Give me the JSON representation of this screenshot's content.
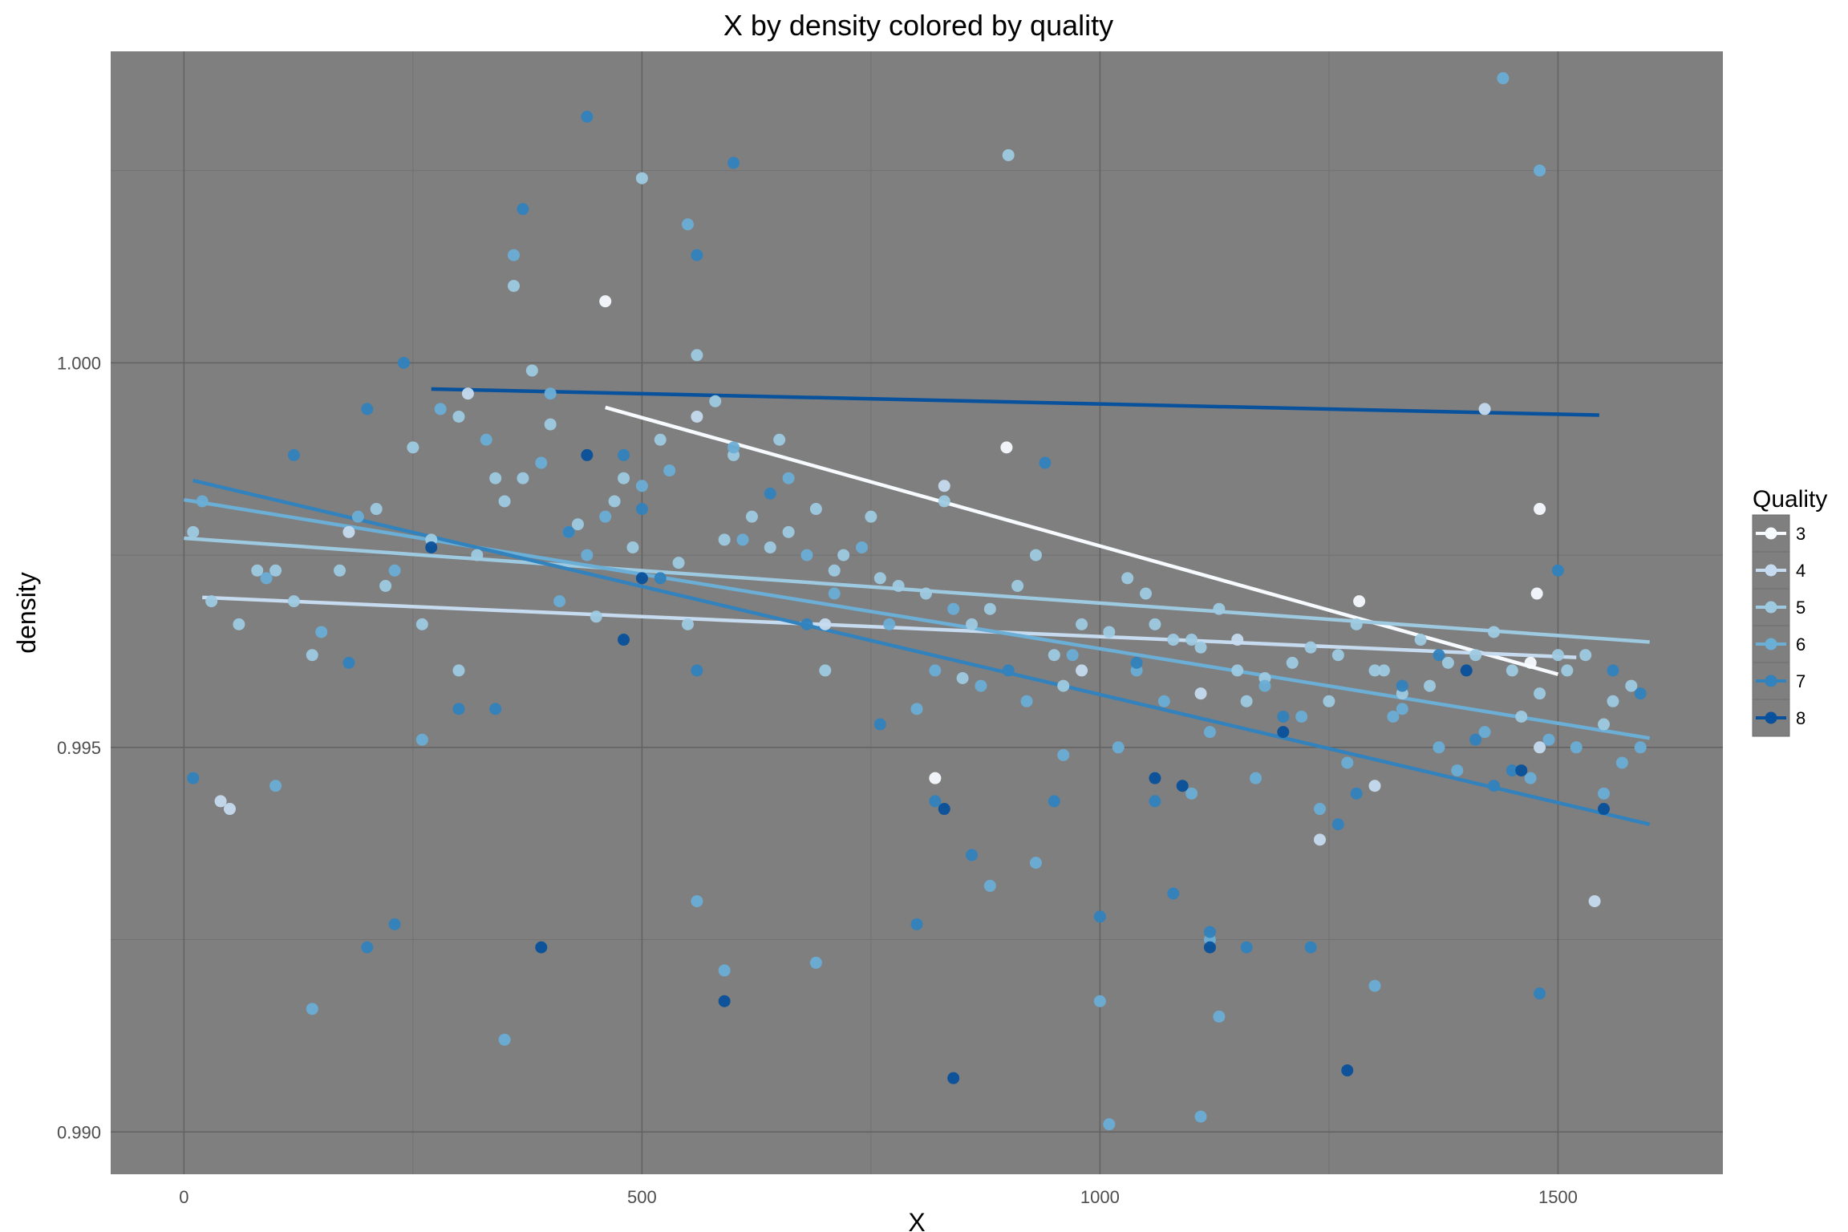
{
  "chart_data": {
    "type": "scatter",
    "title": "X by density colored by quality",
    "xlabel": "X",
    "ylabel": "density",
    "xlim": [
      -80,
      1680
    ],
    "ylim": [
      0.98945,
      1.00405
    ],
    "x_ticks": [
      0,
      500,
      1000,
      1500
    ],
    "x_tick_labels": [
      "0",
      "500",
      "1000",
      "1500"
    ],
    "y_ticks": [
      0.99,
      0.995,
      1.0
    ],
    "y_tick_labels": [
      "0.990",
      "0.995",
      "1.000"
    ],
    "grid": true,
    "panel_background": "#7f7f7f",
    "legend": {
      "title": "Quality",
      "position": "right"
    },
    "series": [
      {
        "name": "3",
        "color": "#f7fbff",
        "points": [
          [
            460,
            1.0008
          ],
          [
            898,
            0.9989
          ],
          [
            1283,
            0.9969
          ],
          [
            1470,
            0.9961
          ],
          [
            1477,
            0.997
          ],
          [
            1480,
            0.9981
          ],
          [
            820,
            0.9946
          ]
        ],
        "trend": [
          [
            460,
            0.99942
          ],
          [
            1500,
            0.99595
          ]
        ]
      },
      {
        "name": "4",
        "color": "#c6dbef",
        "points": [
          [
            40,
            0.9943
          ],
          [
            50,
            0.9942
          ],
          [
            310,
            0.9996
          ],
          [
            830,
            0.9984
          ],
          [
            1110,
            0.9957
          ],
          [
            1240,
            0.9938
          ],
          [
            1300,
            0.9945
          ],
          [
            1420,
            0.9994
          ],
          [
            1480,
            0.995
          ],
          [
            1540,
            0.993
          ],
          [
            180,
            0.9978
          ],
          [
            560,
            0.9993
          ],
          [
            700,
            0.9966
          ],
          [
            980,
            0.996
          ],
          [
            1150,
            0.9964
          ]
        ],
        "trend": [
          [
            20,
            0.99695
          ],
          [
            1520,
            0.99617
          ]
        ]
      },
      {
        "name": "5",
        "color": "#9ecae1",
        "points": [
          [
            10,
            0.9978
          ],
          [
            60,
            0.9966
          ],
          [
            140,
            0.9962
          ],
          [
            210,
            0.9981
          ],
          [
            260,
            0.9966
          ],
          [
            300,
            0.9993
          ],
          [
            340,
            0.9985
          ],
          [
            380,
            0.9999
          ],
          [
            420,
            0.9978
          ],
          [
            470,
            0.9982
          ],
          [
            520,
            0.999
          ],
          [
            560,
            1.0001
          ],
          [
            600,
            0.9988
          ],
          [
            640,
            0.9976
          ],
          [
            690,
            0.9981
          ],
          [
            720,
            0.9975
          ],
          [
            780,
            0.9971
          ],
          [
            830,
            0.9982
          ],
          [
            880,
            0.9968
          ],
          [
            930,
            0.9975
          ],
          [
            980,
            0.9966
          ],
          [
            1030,
            0.9972
          ],
          [
            1080,
            0.9964
          ],
          [
            1130,
            0.9968
          ],
          [
            1180,
            0.9959
          ],
          [
            1230,
            0.9963
          ],
          [
            1280,
            0.9966
          ],
          [
            1330,
            0.9957
          ],
          [
            1380,
            0.9961
          ],
          [
            1430,
            0.9965
          ],
          [
            1480,
            0.9957
          ],
          [
            1530,
            0.9962
          ],
          [
            1580,
            0.9958
          ],
          [
            250,
            0.9989
          ],
          [
            450,
            0.9967
          ],
          [
            650,
            0.999
          ],
          [
            850,
            0.9959
          ],
          [
            1050,
            0.997
          ],
          [
            1250,
            0.9956
          ],
          [
            1450,
            0.996
          ],
          [
            350,
            0.9982
          ],
          [
            550,
            0.9966
          ],
          [
            750,
            0.998
          ],
          [
            950,
            0.9962
          ],
          [
            1150,
            0.996
          ],
          [
            1350,
            0.9964
          ],
          [
            1550,
            0.9953
          ],
          [
            100,
            0.9973
          ],
          [
            300,
            0.996
          ],
          [
            500,
            1.0024
          ],
          [
            700,
            0.996
          ],
          [
            900,
            1.0027
          ],
          [
            1100,
            0.9964
          ],
          [
            1300,
            0.996
          ],
          [
            1500,
            0.9962
          ],
          [
            360,
            1.001
          ],
          [
            400,
            0.9992
          ],
          [
            480,
            0.9985
          ],
          [
            580,
            0.9995
          ],
          [
            620,
            0.998
          ],
          [
            760,
            0.9972
          ],
          [
            860,
            0.9966
          ],
          [
            960,
            0.9958
          ],
          [
            1060,
            0.9966
          ],
          [
            1160,
            0.9956
          ],
          [
            1260,
            0.9962
          ],
          [
            1360,
            0.9958
          ],
          [
            1460,
            0.9954
          ],
          [
            1560,
            0.9956
          ],
          [
            30,
            0.9969
          ],
          [
            80,
            0.9973
          ],
          [
            120,
            0.9969
          ],
          [
            170,
            0.9973
          ],
          [
            220,
            0.9971
          ],
          [
            270,
            0.9977
          ],
          [
            320,
            0.9975
          ],
          [
            370,
            0.9985
          ],
          [
            430,
            0.9979
          ],
          [
            490,
            0.9976
          ],
          [
            540,
            0.9974
          ],
          [
            590,
            0.9977
          ],
          [
            660,
            0.9978
          ],
          [
            710,
            0.9973
          ],
          [
            810,
            0.997
          ],
          [
            910,
            0.9971
          ],
          [
            1010,
            0.9965
          ],
          [
            1110,
            0.9963
          ],
          [
            1210,
            0.9961
          ],
          [
            1310,
            0.996
          ],
          [
            1410,
            0.9962
          ],
          [
            1510,
            0.996
          ]
        ],
        "trend": [
          [
            0,
            0.99772
          ],
          [
            1600,
            0.99637
          ]
        ]
      },
      {
        "name": "6",
        "color": "#6baed6",
        "points": [
          [
            20,
            0.9982
          ],
          [
            90,
            0.9972
          ],
          [
            150,
            0.9965
          ],
          [
            230,
            0.9973
          ],
          [
            280,
            0.9994
          ],
          [
            330,
            0.999
          ],
          [
            390,
            0.9987
          ],
          [
            440,
            0.9975
          ],
          [
            500,
            0.9984
          ],
          [
            550,
            1.0018
          ],
          [
            610,
            0.9977
          ],
          [
            660,
            0.9985
          ],
          [
            710,
            0.997
          ],
          [
            770,
            0.9966
          ],
          [
            820,
            0.996
          ],
          [
            870,
            0.9958
          ],
          [
            920,
            0.9956
          ],
          [
            970,
            0.9962
          ],
          [
            1020,
            0.995
          ],
          [
            1070,
            0.9956
          ],
          [
            1120,
            0.9952
          ],
          [
            1170,
            0.9946
          ],
          [
            1220,
            0.9954
          ],
          [
            1270,
            0.9948
          ],
          [
            1320,
            0.9954
          ],
          [
            1370,
            0.995
          ],
          [
            1420,
            0.9952
          ],
          [
            1470,
            0.9946
          ],
          [
            1520,
            0.995
          ],
          [
            1570,
            0.9948
          ],
          [
            190,
            0.998
          ],
          [
            360,
            1.0014
          ],
          [
            410,
            0.9969
          ],
          [
            530,
            0.9986
          ],
          [
            680,
            0.9975
          ],
          [
            800,
            0.9955
          ],
          [
            960,
            0.9949
          ],
          [
            1100,
            0.9944
          ],
          [
            1240,
            0.9942
          ],
          [
            1390,
            0.9947
          ],
          [
            1550,
            0.9944
          ],
          [
            100,
            0.9945
          ],
          [
            260,
            0.9951
          ],
          [
            560,
            0.993
          ],
          [
            590,
            0.9921
          ],
          [
            690,
            0.9922
          ],
          [
            930,
            0.9935
          ],
          [
            1000,
            0.9917
          ],
          [
            1120,
            0.9925
          ],
          [
            1300,
            0.9919
          ],
          [
            1440,
            1.0037
          ],
          [
            1480,
            1.0025
          ],
          [
            140,
            0.9916
          ],
          [
            350,
            0.9912
          ],
          [
            1010,
            0.9901
          ],
          [
            1110,
            0.9902
          ],
          [
            1130,
            0.9915
          ],
          [
            880,
            0.9932
          ],
          [
            400,
            0.9996
          ],
          [
            460,
            0.998
          ],
          [
            600,
            0.9989
          ],
          [
            740,
            0.9976
          ],
          [
            840,
            0.9968
          ],
          [
            1040,
            0.996
          ],
          [
            1180,
            0.9958
          ],
          [
            1330,
            0.9955
          ],
          [
            1490,
            0.9951
          ],
          [
            1590,
            0.995
          ]
        ],
        "trend": [
          [
            0,
            0.99822
          ],
          [
            1600,
            0.99512
          ]
        ]
      },
      {
        "name": "7",
        "color": "#3182bd",
        "points": [
          [
            10,
            0.9946
          ],
          [
            120,
            0.9988
          ],
          [
            180,
            0.9961
          ],
          [
            200,
            0.9924
          ],
          [
            230,
            0.9927
          ],
          [
            240,
            1.0
          ],
          [
            340,
            0.9955
          ],
          [
            370,
            1.002
          ],
          [
            440,
            1.0032
          ],
          [
            480,
            0.9988
          ],
          [
            500,
            0.9981
          ],
          [
            560,
            0.996
          ],
          [
            640,
            0.9983
          ],
          [
            760,
            0.9953
          ],
          [
            800,
            0.9927
          ],
          [
            820,
            0.9943
          ],
          [
            860,
            0.9936
          ],
          [
            950,
            0.9943
          ],
          [
            1000,
            0.9928
          ],
          [
            1040,
            0.9961
          ],
          [
            1080,
            0.9931
          ],
          [
            1120,
            0.9926
          ],
          [
            1160,
            0.9924
          ],
          [
            1200,
            0.9954
          ],
          [
            1230,
            0.9924
          ],
          [
            1280,
            0.9944
          ],
          [
            1330,
            0.9958
          ],
          [
            1370,
            0.9962
          ],
          [
            1410,
            0.9951
          ],
          [
            1450,
            0.9947
          ],
          [
            1480,
            0.9918
          ],
          [
            1500,
            0.9973
          ],
          [
            1560,
            0.996
          ],
          [
            1590,
            0.9957
          ],
          [
            300,
            0.9955
          ],
          [
            420,
            0.9978
          ],
          [
            520,
            0.9972
          ],
          [
            680,
            0.9966
          ],
          [
            900,
            0.996
          ],
          [
            1060,
            0.9943
          ],
          [
            1260,
            0.994
          ],
          [
            1430,
            0.9945
          ],
          [
            200,
            0.9994
          ],
          [
            560,
            1.0014
          ],
          [
            600,
            1.0026
          ],
          [
            940,
            0.9987
          ]
        ],
        "trend": [
          [
            10,
            0.99847
          ],
          [
            1600,
            0.994
          ]
        ]
      },
      {
        "name": "8",
        "color": "#08519c",
        "points": [
          [
            270,
            0.9976
          ],
          [
            390,
            0.9924
          ],
          [
            440,
            0.9988
          ],
          [
            480,
            0.9964
          ],
          [
            500,
            0.9972
          ],
          [
            590,
            0.9917
          ],
          [
            830,
            0.9942
          ],
          [
            840,
            0.9907
          ],
          [
            1060,
            0.9946
          ],
          [
            1090,
            0.9945
          ],
          [
            1120,
            0.9924
          ],
          [
            1200,
            0.9952
          ],
          [
            1270,
            0.9908
          ],
          [
            1400,
            0.996
          ],
          [
            1460,
            0.9947
          ],
          [
            1550,
            0.9942
          ]
        ],
        "trend": [
          [
            270,
            0.99966
          ],
          [
            1545,
            0.99932
          ]
        ]
      }
    ]
  }
}
